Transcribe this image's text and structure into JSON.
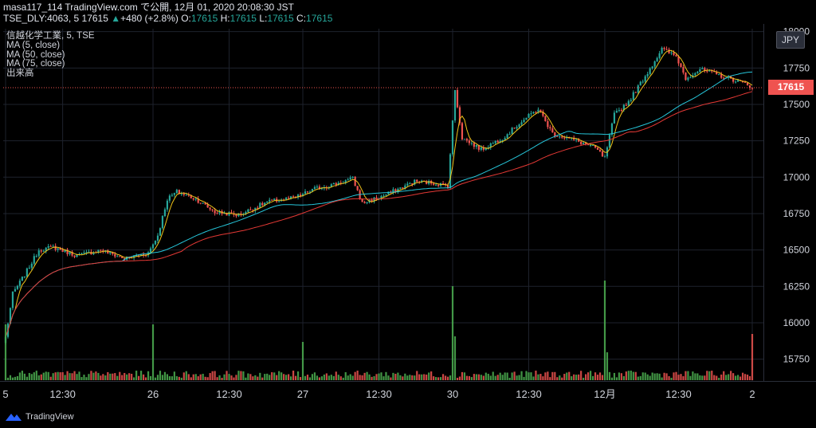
{
  "header": {
    "line1": "masa117_114 TradingView.com で公開, 12月 01, 2020 20:08:30 JST",
    "symbol": "TSE_DLY:4063, 5",
    "last": "17615",
    "change_prefix": "▲",
    "change": "+480 (+2.8%)",
    "o_label": "O:",
    "o_value": "17615",
    "h_label": "H:",
    "h_value": "17615",
    "l_label": "L:",
    "l_value": "17615",
    "c_label": "C:",
    "c_value": "17615"
  },
  "legend": {
    "title": "信越化学工業, 5, TSE",
    "ma5": "MA (5, close)",
    "ma50": "MA (50, close)",
    "ma75": "MA (75, close)",
    "volume": "出来高"
  },
  "currency_button": "JPY",
  "price_label": "17615",
  "brand": "TradingView",
  "colors": {
    "up": "#26a69a",
    "down": "#ef5350",
    "ma5": "#f0c419",
    "ma50": "#26c6da",
    "ma75": "#e53935",
    "vol_up": "#4caf50",
    "vol_down": "#ef5350"
  },
  "chart_data": {
    "type": "candlestick",
    "y_ticks": [
      15750,
      16000,
      16250,
      16500,
      16750,
      17000,
      17250,
      17500,
      17750,
      18000
    ],
    "x_ticks": [
      "5",
      "12:30",
      "26",
      "12:30",
      "27",
      "12:30",
      "30",
      "12:30",
      "12月",
      "12:30",
      "2"
    ],
    "ylim": [
      15600,
      18020
    ],
    "price_anchors": [
      [
        0,
        15900
      ],
      [
        3,
        16200
      ],
      [
        8,
        16330
      ],
      [
        14,
        16500
      ],
      [
        20,
        16520
      ],
      [
        30,
        16460
      ],
      [
        40,
        16500
      ],
      [
        50,
        16440
      ],
      [
        60,
        16480
      ],
      [
        64,
        16600
      ],
      [
        68,
        16850
      ],
      [
        72,
        16900
      ],
      [
        80,
        16850
      ],
      [
        88,
        16760
      ],
      [
        98,
        16740
      ],
      [
        110,
        16830
      ],
      [
        122,
        16860
      ],
      [
        130,
        16920
      ],
      [
        138,
        16950
      ],
      [
        146,
        16990
      ],
      [
        150,
        16820
      ],
      [
        160,
        16880
      ],
      [
        172,
        16970
      ],
      [
        180,
        16960
      ],
      [
        186,
        16940
      ],
      [
        189,
        17600
      ],
      [
        192,
        17270
      ],
      [
        200,
        17190
      ],
      [
        210,
        17280
      ],
      [
        216,
        17370
      ],
      [
        224,
        17470
      ],
      [
        230,
        17300
      ],
      [
        240,
        17250
      ],
      [
        248,
        17200
      ],
      [
        252,
        17130
      ],
      [
        256,
        17430
      ],
      [
        262,
        17520
      ],
      [
        270,
        17720
      ],
      [
        276,
        17880
      ],
      [
        282,
        17830
      ],
      [
        286,
        17680
      ],
      [
        292,
        17740
      ],
      [
        300,
        17700
      ],
      [
        308,
        17660
      ],
      [
        314,
        17620
      ]
    ],
    "volume_spikes": {
      "0": 70,
      "62": 70,
      "125": 48,
      "188": 118,
      "189": 55,
      "252": 125,
      "253": 35,
      "314": 58
    }
  }
}
